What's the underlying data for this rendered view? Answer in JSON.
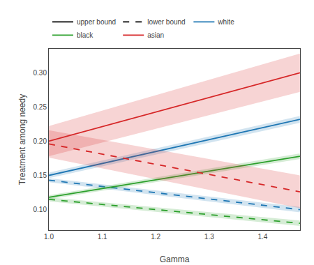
{
  "chart_data": {
    "type": "line",
    "xlabel": "Gamma",
    "ylabel": "Treatment among needy",
    "x": [
      1.0,
      1.47
    ],
    "xlim": [
      1.0,
      1.47
    ],
    "ylim": [
      0.07,
      0.335
    ],
    "xticks": [
      {
        "value": 1.0,
        "label": "1.0"
      },
      1.1,
      1.2,
      1.3,
      1.4
    ],
    "yticks": [
      {
        "value": 0.1,
        "label": "0.10"
      },
      0.15,
      {
        "value": 0.2,
        "label": "0.20"
      },
      0.25,
      {
        "value": 0.3,
        "label": "0.30"
      }
    ],
    "grid": false,
    "legend": "upper left",
    "bounds": [
      {
        "name": "upper bound",
        "line_style": "solid",
        "color": "black"
      },
      {
        "name": "lower bound",
        "line_style": "dashed",
        "color": "black"
      }
    ],
    "series": [
      {
        "name": "white",
        "color": "#1f77b4",
        "lines": [
          {
            "values": [
              0.15,
              0.232
            ],
            "ci_low": [
              0.146,
              0.227
            ],
            "ci_high": [
              0.154,
              0.237
            ]
          },
          {
            "values": [
              0.143,
              0.1
            ],
            "ci_low": [
              0.14,
              0.096
            ],
            "ci_high": [
              0.146,
              0.104
            ]
          }
        ]
      },
      {
        "name": "black",
        "color": "#2ca02c",
        "lines": [
          {
            "values": [
              0.118,
              0.178
            ],
            "ci_low": [
              0.115,
              0.174
            ],
            "ci_high": [
              0.121,
              0.182
            ]
          },
          {
            "values": [
              0.115,
              0.08
            ],
            "ci_low": [
              0.112,
              0.076
            ],
            "ci_high": [
              0.118,
              0.084
            ]
          }
        ]
      },
      {
        "name": "asian",
        "color": "#d62728",
        "lines": [
          {
            "values": [
              0.2,
              0.3
            ],
            "ci_low": [
              0.178,
              0.272
            ],
            "ci_high": [
              0.222,
              0.328
            ]
          },
          {
            "values": [
              0.196,
              0.126
            ],
            "ci_low": [
              0.176,
              0.102
            ],
            "ci_high": [
              0.216,
              0.15
            ]
          }
        ]
      }
    ]
  }
}
